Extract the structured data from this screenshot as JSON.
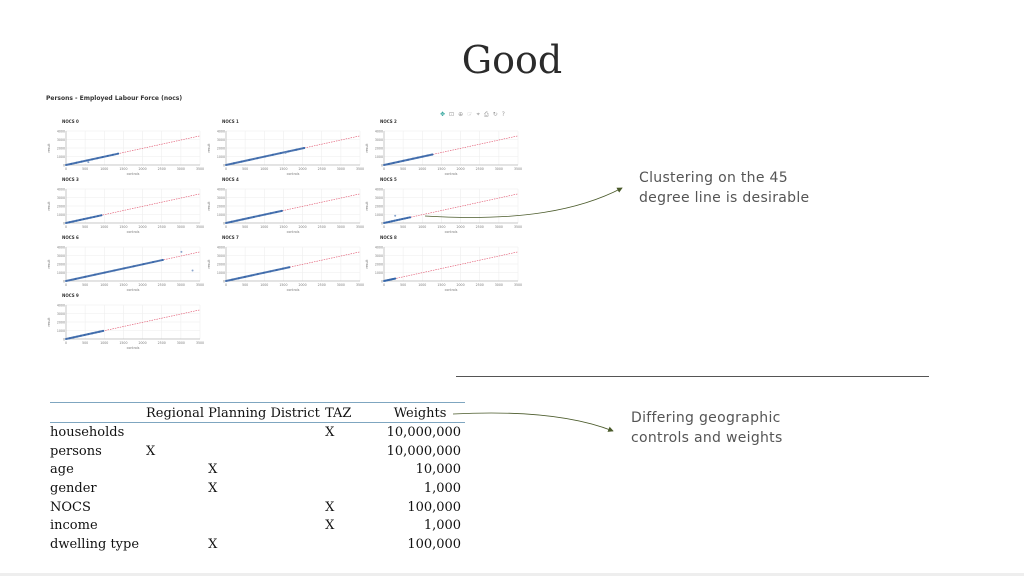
{
  "slide": {
    "title": "Good"
  },
  "figure": {
    "title": "Persons - Employed Labour Force (nocs)",
    "toolbar_icons": [
      "pan-icon",
      "box-zoom-icon",
      "wheel-zoom-icon",
      "tap-icon",
      "hover-icon",
      "save-icon",
      "reset-icon",
      "help-icon"
    ],
    "axis_label_x": "controls",
    "axis_label_y": "result",
    "ytick_labels": [
      "4000",
      "3000",
      "2000",
      "1000",
      "0"
    ],
    "xtick_labels": [
      "0",
      "500",
      "1000",
      "1500",
      "2000",
      "2500",
      "3000",
      "3500"
    ],
    "colors": {
      "points": "#2f63a8",
      "reference_line": "#e0506a"
    }
  },
  "chart_data": [
    {
      "type": "scatter",
      "title": "NOCS 0",
      "cluster_max": [
        1400,
        1400
      ],
      "outliers": [
        [
          600,
          350
        ]
      ]
    },
    {
      "type": "scatter",
      "title": "NOCS 1",
      "cluster_max": [
        2100,
        2100
      ],
      "outliers": [
        [
          1600,
          1500
        ]
      ]
    },
    {
      "type": "scatter",
      "title": "NOCS 2",
      "cluster_max": [
        1300,
        1300
      ],
      "outliers": []
    },
    {
      "type": "scatter",
      "title": "NOCS 3",
      "cluster_max": [
        950,
        950
      ],
      "outliers": []
    },
    {
      "type": "scatter",
      "title": "NOCS 4",
      "cluster_max": [
        1500,
        1500
      ],
      "outliers": []
    },
    {
      "type": "scatter",
      "title": "NOCS 5",
      "cluster_max": [
        700,
        700
      ],
      "outliers": [
        [
          300,
          900
        ]
      ]
    },
    {
      "type": "scatter",
      "title": "NOCS 6",
      "cluster_max": [
        2600,
        2600
      ],
      "outliers": [
        [
          3100,
          3600
        ],
        [
          3400,
          1300
        ]
      ]
    },
    {
      "type": "scatter",
      "title": "NOCS 7",
      "cluster_max": [
        1700,
        1700
      ],
      "outliers": []
    },
    {
      "type": "scatter",
      "title": "NOCS 8",
      "cluster_max": [
        300,
        300
      ],
      "outliers": []
    },
    {
      "type": "scatter",
      "title": "NOCS 9",
      "cluster_max": [
        1000,
        1000
      ],
      "outliers": []
    }
  ],
  "callouts": {
    "top": [
      "Clustering on the 45",
      "degree line is desirable"
    ],
    "bottom": [
      "Differing geographic",
      "controls and weights"
    ]
  },
  "table": {
    "headers": [
      "",
      "Regional",
      "Planning District",
      "TAZ",
      "Weights"
    ],
    "rows": [
      [
        "households",
        "",
        "",
        "X",
        "10,000,000"
      ],
      [
        "persons",
        "X",
        "",
        "",
        "10,000,000"
      ],
      [
        "age",
        "",
        "X",
        "",
        "10,000"
      ],
      [
        "gender",
        "",
        "X",
        "",
        "1,000"
      ],
      [
        "NOCS",
        "",
        "",
        "X",
        "100,000"
      ],
      [
        "income",
        "",
        "",
        "X",
        "1,000"
      ],
      [
        "dwelling type",
        "",
        "X",
        "",
        "100,000"
      ]
    ]
  },
  "arrow_color": "#4a5a2a"
}
